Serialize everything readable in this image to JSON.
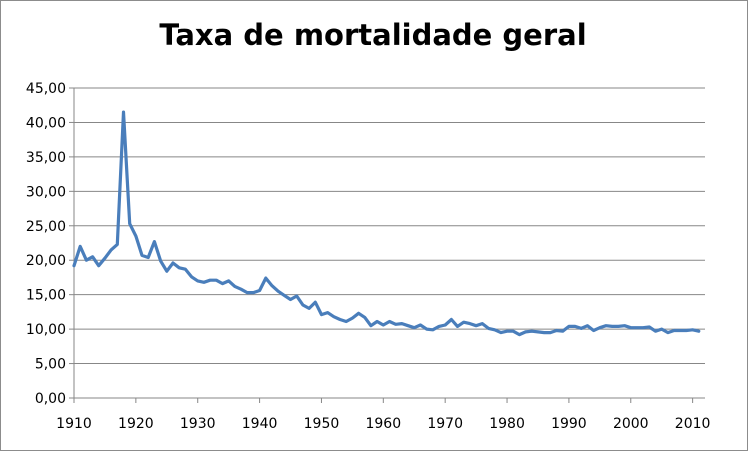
{
  "chart_data": {
    "type": "line",
    "title": "Taxa de mortalidade geral",
    "xlabel": "",
    "ylabel": "",
    "xlim": [
      1910,
      2012
    ],
    "ylim": [
      0,
      45
    ],
    "x_ticks": [
      "1910",
      "1920",
      "1930",
      "1940",
      "1950",
      "1960",
      "1970",
      "1980",
      "1990",
      "2000",
      "2010"
    ],
    "x_tick_values": [
      1910,
      1920,
      1930,
      1940,
      1950,
      1960,
      1970,
      1980,
      1990,
      2000,
      2010
    ],
    "y_ticks": [
      "0,00",
      "5,00",
      "10,00",
      "15,00",
      "20,00",
      "25,00",
      "30,00",
      "35,00",
      "40,00",
      "45,00"
    ],
    "y_tick_values": [
      0,
      5,
      10,
      15,
      20,
      25,
      30,
      35,
      40,
      45
    ],
    "grid": "horizontal",
    "legend": "none",
    "series": [
      {
        "color": "#4a7ebb",
        "x": [
          1910,
          1911,
          1912,
          1913,
          1914,
          1915,
          1916,
          1917,
          1918,
          1919,
          1920,
          1921,
          1922,
          1923,
          1924,
          1925,
          1926,
          1927,
          1928,
          1929,
          1930,
          1931,
          1932,
          1933,
          1934,
          1935,
          1936,
          1937,
          1938,
          1939,
          1940,
          1941,
          1942,
          1943,
          1944,
          1945,
          1946,
          1947,
          1948,
          1949,
          1950,
          1951,
          1952,
          1953,
          1954,
          1955,
          1956,
          1957,
          1958,
          1959,
          1960,
          1961,
          1962,
          1963,
          1964,
          1965,
          1966,
          1967,
          1968,
          1969,
          1970,
          1971,
          1972,
          1973,
          1974,
          1975,
          1976,
          1977,
          1978,
          1979,
          1980,
          1981,
          1982,
          1983,
          1984,
          1985,
          1986,
          1987,
          1988,
          1989,
          1990,
          1991,
          1992,
          1993,
          1994,
          1995,
          1996,
          1997,
          1998,
          1999,
          2000,
          2001,
          2002,
          2003,
          2004,
          2005,
          2006,
          2007,
          2008,
          2009,
          2010,
          2011
        ],
        "y": [
          19.2,
          22.0,
          20.0,
          20.5,
          19.2,
          20.3,
          21.5,
          22.3,
          41.5,
          25.3,
          23.5,
          20.7,
          20.4,
          22.7,
          19.9,
          18.4,
          19.6,
          18.9,
          18.7,
          17.6,
          17.0,
          16.8,
          17.1,
          17.1,
          16.6,
          17.0,
          16.2,
          15.8,
          15.3,
          15.3,
          15.6,
          17.4,
          16.3,
          15.5,
          14.9,
          14.3,
          14.8,
          13.5,
          13.0,
          13.9,
          12.1,
          12.4,
          11.8,
          11.4,
          11.1,
          11.6,
          12.3,
          11.7,
          10.5,
          11.1,
          10.6,
          11.1,
          10.7,
          10.8,
          10.5,
          10.2,
          10.6,
          10.0,
          9.9,
          10.4,
          10.6,
          11.4,
          10.4,
          11.0,
          10.8,
          10.5,
          10.8,
          10.1,
          9.9,
          9.5,
          9.7,
          9.7,
          9.2,
          9.6,
          9.7,
          9.6,
          9.5,
          9.5,
          9.8,
          9.7,
          10.4,
          10.4,
          10.1,
          10.5,
          9.8,
          10.2,
          10.5,
          10.4,
          10.4,
          10.5,
          10.2,
          10.2,
          10.2,
          10.3,
          9.7,
          10.0,
          9.5,
          9.8,
          9.8,
          9.8,
          9.9,
          9.7
        ]
      }
    ]
  }
}
